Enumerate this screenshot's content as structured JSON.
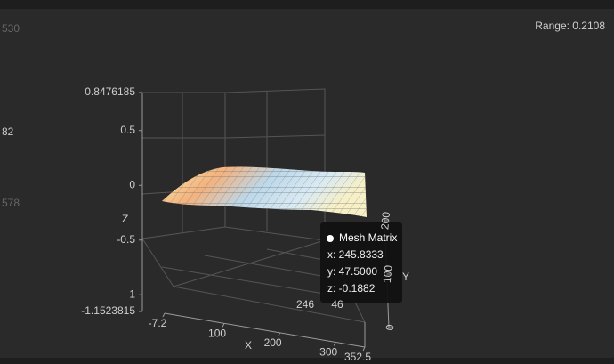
{
  "chart_data": {
    "type": "surface3d",
    "range_label": "Range: 0.2108",
    "side_labels": [
      "530",
      "82",
      "578"
    ],
    "xlabel": "X",
    "ylabel": "Y",
    "zlabel": "Z",
    "xlim": [
      -7.2,
      352.5
    ],
    "xticks": [
      -7.2,
      100,
      200,
      300,
      352.5
    ],
    "yticks": [
      0,
      100,
      200
    ],
    "zlim": [
      -1.1523815,
      0.8476185
    ],
    "zticks": [
      -1.1523815,
      -1,
      -0.5,
      0,
      0.5,
      0.8476185
    ],
    "pointer_labels": [
      "246",
      "46"
    ],
    "tooltip": {
      "name": "Mesh Matrix",
      "lines": [
        "x: 245.8333",
        "y: 47.5000",
        "z: -0.1882"
      ]
    }
  }
}
